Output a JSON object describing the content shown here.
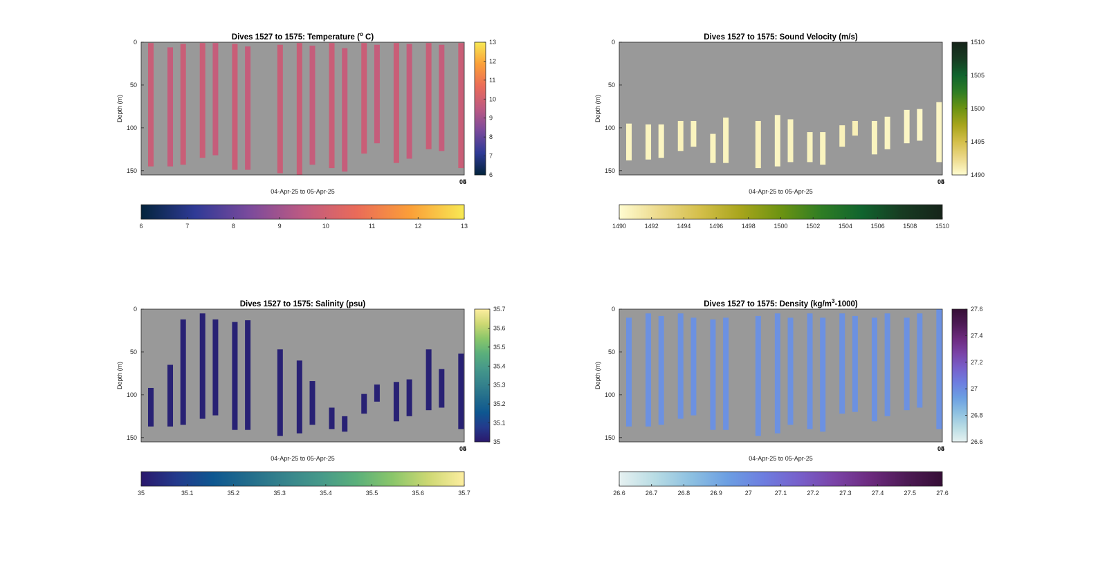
{
  "figure": {
    "background": "#ffffff",
    "axes_background": "#999999"
  },
  "chart_data": [
    {
      "type": "heatmap",
      "title_main": "Dives 1527 to 1575: Temperature (",
      "title_sup": "o",
      "title_tail": " C)",
      "xlabel": "04-Apr-25 to 05-Apr-25",
      "ylabel": "Depth (m)",
      "xtick_labels": [
        "04",
        "05"
      ],
      "ylim": [
        0,
        155
      ],
      "yticks": [
        0,
        50,
        100,
        150
      ],
      "colormap": "thermal",
      "colormap_stops": [
        "#03243c",
        "#2f3a96",
        "#7a4a9c",
        "#bd5a82",
        "#ea6b59",
        "#fb9f38",
        "#f7e954"
      ],
      "clim": [
        6,
        13
      ],
      "vcolorbar_ticks": [
        6,
        7,
        8,
        9,
        10,
        11,
        12,
        13
      ],
      "hcolorbar_ticks": [
        6,
        7,
        8,
        9,
        10,
        11,
        12,
        13
      ],
      "profiles": [
        {
          "x": 0.03,
          "top": 1,
          "bottom": 145,
          "value": 9.8
        },
        {
          "x": 0.09,
          "top": 6,
          "bottom": 145,
          "value": 9.7
        },
        {
          "x": 0.13,
          "top": 2,
          "bottom": 143,
          "value": 9.8
        },
        {
          "x": 0.19,
          "top": 1,
          "bottom": 135,
          "value": 9.8
        },
        {
          "x": 0.23,
          "top": 1,
          "bottom": 132,
          "value": 9.7
        },
        {
          "x": 0.29,
          "top": 2,
          "bottom": 149,
          "value": 9.8
        },
        {
          "x": 0.33,
          "top": 5,
          "bottom": 149,
          "value": 9.7
        },
        {
          "x": 0.43,
          "top": 3,
          "bottom": 153,
          "value": 9.8
        },
        {
          "x": 0.49,
          "top": 1,
          "bottom": 155,
          "value": 9.8
        },
        {
          "x": 0.53,
          "top": 4,
          "bottom": 143,
          "value": 9.7
        },
        {
          "x": 0.59,
          "top": 1,
          "bottom": 147,
          "value": 9.8
        },
        {
          "x": 0.63,
          "top": 7,
          "bottom": 151,
          "value": 9.7
        },
        {
          "x": 0.69,
          "top": 1,
          "bottom": 130,
          "value": 9.8
        },
        {
          "x": 0.73,
          "top": 3,
          "bottom": 118,
          "value": 9.7
        },
        {
          "x": 0.79,
          "top": 1,
          "bottom": 141,
          "value": 9.8
        },
        {
          "x": 0.83,
          "top": 2,
          "bottom": 136,
          "value": 9.7
        },
        {
          "x": 0.89,
          "top": 1,
          "bottom": 125,
          "value": 9.8
        },
        {
          "x": 0.93,
          "top": 3,
          "bottom": 127,
          "value": 9.7
        },
        {
          "x": 0.99,
          "top": 1,
          "bottom": 147,
          "value": 9.8
        }
      ]
    },
    {
      "type": "heatmap",
      "title_main": "Dives 1527 to 1575: Sound Velocity (m/s)",
      "title_sup": "",
      "title_tail": "",
      "xlabel": "04-Apr-25 to 05-Apr-25",
      "ylabel": "Depth (m)",
      "xtick_labels": [
        "04",
        "05"
      ],
      "ylim": [
        0,
        155
      ],
      "yticks": [
        0,
        50,
        100,
        150
      ],
      "colormap": "speed",
      "colormap_stops": [
        "#fffcd0",
        "#ecd98a",
        "#d4bf4a",
        "#a8a51c",
        "#6c9312",
        "#2f7d24",
        "#10642e",
        "#173b22",
        "#16241a"
      ],
      "clim": [
        1490,
        1510
      ],
      "vcolorbar_ticks": [
        1490,
        1495,
        1500,
        1505,
        1510
      ],
      "hcolorbar_ticks": [
        1490,
        1492,
        1494,
        1496,
        1498,
        1500,
        1502,
        1504,
        1506,
        1508,
        1510
      ],
      "profiles": [
        {
          "x": 0.03,
          "top": 95,
          "bottom": 138,
          "value": 1490.5
        },
        {
          "x": 0.09,
          "top": 96,
          "bottom": 137,
          "value": 1490.6
        },
        {
          "x": 0.13,
          "top": 96,
          "bottom": 135,
          "value": 1490.5
        },
        {
          "x": 0.19,
          "top": 92,
          "bottom": 127,
          "value": 1490.7
        },
        {
          "x": 0.23,
          "top": 92,
          "bottom": 122,
          "value": 1490.6
        },
        {
          "x": 0.29,
          "top": 107,
          "bottom": 141,
          "value": 1490.6
        },
        {
          "x": 0.33,
          "top": 88,
          "bottom": 141,
          "value": 1490.6
        },
        {
          "x": 0.43,
          "top": 92,
          "bottom": 147,
          "value": 1490.7
        },
        {
          "x": 0.49,
          "top": 85,
          "bottom": 145,
          "value": 1490.5
        },
        {
          "x": 0.53,
          "top": 90,
          "bottom": 140,
          "value": 1490.6
        },
        {
          "x": 0.59,
          "top": 105,
          "bottom": 140,
          "value": 1490.6
        },
        {
          "x": 0.63,
          "top": 105,
          "bottom": 143,
          "value": 1490.6
        },
        {
          "x": 0.69,
          "top": 97,
          "bottom": 122,
          "value": 1490.8
        },
        {
          "x": 0.73,
          "top": 92,
          "bottom": 109,
          "value": 1490.9
        },
        {
          "x": 0.79,
          "top": 92,
          "bottom": 131,
          "value": 1490.6
        },
        {
          "x": 0.83,
          "top": 87,
          "bottom": 125,
          "value": 1490.5
        },
        {
          "x": 0.89,
          "top": 79,
          "bottom": 118,
          "value": 1490.4
        },
        {
          "x": 0.93,
          "top": 78,
          "bottom": 115,
          "value": 1490.3
        },
        {
          "x": 0.99,
          "top": 70,
          "bottom": 140,
          "value": 1490.4
        }
      ]
    },
    {
      "type": "heatmap",
      "title_main": "Dives 1527 to 1575: Salinity (psu)",
      "title_sup": "",
      "title_tail": "",
      "xlabel": "04-Apr-25 to 05-Apr-25",
      "ylabel": "Depth (m)",
      "xtick_labels": [
        "04",
        "05"
      ],
      "ylim": [
        0,
        155
      ],
      "yticks": [
        0,
        50,
        100,
        150
      ],
      "colormap": "haline",
      "colormap_stops": [
        "#2a186c",
        "#233a8c",
        "#0e5790",
        "#236d8c",
        "#36848c",
        "#46998a",
        "#5bb07b",
        "#8ac66a",
        "#cdd873",
        "#fdeea0"
      ],
      "clim": [
        35,
        35.7
      ],
      "vcolorbar_ticks": [
        35,
        35.1,
        35.2,
        35.3,
        35.4,
        35.5,
        35.6,
        35.7
      ],
      "hcolorbar_ticks": [
        35,
        35.1,
        35.2,
        35.3,
        35.4,
        35.5,
        35.6,
        35.7
      ],
      "profiles": [
        {
          "x": 0.03,
          "top": 92,
          "bottom": 137,
          "value": 35.02
        },
        {
          "x": 0.09,
          "top": 65,
          "bottom": 137,
          "value": 35.02
        },
        {
          "x": 0.13,
          "top": 12,
          "bottom": 135,
          "value": 35.02
        },
        {
          "x": 0.19,
          "top": 5,
          "bottom": 128,
          "value": 35.02
        },
        {
          "x": 0.23,
          "top": 12,
          "bottom": 124,
          "value": 35.02
        },
        {
          "x": 0.29,
          "top": 15,
          "bottom": 141,
          "value": 35.02
        },
        {
          "x": 0.33,
          "top": 13,
          "bottom": 141,
          "value": 35.02
        },
        {
          "x": 0.43,
          "top": 47,
          "bottom": 148,
          "value": 35.02
        },
        {
          "x": 0.49,
          "top": 60,
          "bottom": 145,
          "value": 35.02
        },
        {
          "x": 0.53,
          "top": 84,
          "bottom": 135,
          "value": 35.02
        },
        {
          "x": 0.59,
          "top": 115,
          "bottom": 140,
          "value": 35.02
        },
        {
          "x": 0.63,
          "top": 125,
          "bottom": 143,
          "value": 35.02
        },
        {
          "x": 0.69,
          "top": 99,
          "bottom": 122,
          "value": 35.02
        },
        {
          "x": 0.73,
          "top": 88,
          "bottom": 108,
          "value": 35.02
        },
        {
          "x": 0.79,
          "top": 85,
          "bottom": 131,
          "value": 35.02
        },
        {
          "x": 0.83,
          "top": 82,
          "bottom": 125,
          "value": 35.02
        },
        {
          "x": 0.89,
          "top": 47,
          "bottom": 118,
          "value": 35.02
        },
        {
          "x": 0.93,
          "top": 70,
          "bottom": 115,
          "value": 35.02
        },
        {
          "x": 0.99,
          "top": 52,
          "bottom": 140,
          "value": 35.02
        }
      ]
    },
    {
      "type": "heatmap",
      "title_main": "Dives 1527 to 1575: Density (kg/m",
      "title_sup": "3",
      "title_tail": "-1000)",
      "xlabel": "04-Apr-25 to 05-Apr-25",
      "ylabel": "Depth (m)",
      "xtick_labels": [
        "04",
        "05"
      ],
      "ylim": [
        0,
        155
      ],
      "yticks": [
        0,
        50,
        100,
        150
      ],
      "colormap": "dense",
      "colormap_stops": [
        "#e6f1f1",
        "#b8dce4",
        "#8dc0e1",
        "#6c9fe2",
        "#6d7ee0",
        "#7760cb",
        "#7a43a7",
        "#6c2a7e",
        "#4d1a55",
        "#360e36"
      ],
      "clim": [
        26.6,
        27.6
      ],
      "vcolorbar_ticks": [
        26.6,
        26.8,
        27,
        27.2,
        27.4,
        27.6
      ],
      "hcolorbar_ticks": [
        26.6,
        26.7,
        26.8,
        26.9,
        27,
        27.1,
        27.2,
        27.3,
        27.4,
        27.5,
        27.6
      ],
      "profiles": [
        {
          "x": 0.03,
          "top": 10,
          "bottom": 137,
          "value": 26.98
        },
        {
          "x": 0.09,
          "top": 5,
          "bottom": 137,
          "value": 26.98
        },
        {
          "x": 0.13,
          "top": 8,
          "bottom": 135,
          "value": 26.98
        },
        {
          "x": 0.19,
          "top": 5,
          "bottom": 128,
          "value": 26.98
        },
        {
          "x": 0.23,
          "top": 10,
          "bottom": 124,
          "value": 26.98
        },
        {
          "x": 0.29,
          "top": 12,
          "bottom": 141,
          "value": 26.98
        },
        {
          "x": 0.33,
          "top": 10,
          "bottom": 141,
          "value": 26.98
        },
        {
          "x": 0.43,
          "top": 8,
          "bottom": 148,
          "value": 26.98
        },
        {
          "x": 0.49,
          "top": 5,
          "bottom": 145,
          "value": 26.98
        },
        {
          "x": 0.53,
          "top": 10,
          "bottom": 135,
          "value": 26.98
        },
        {
          "x": 0.59,
          "top": 5,
          "bottom": 140,
          "value": 26.98
        },
        {
          "x": 0.63,
          "top": 10,
          "bottom": 143,
          "value": 26.98
        },
        {
          "x": 0.69,
          "top": 5,
          "bottom": 122,
          "value": 26.98
        },
        {
          "x": 0.73,
          "top": 8,
          "bottom": 120,
          "value": 26.98
        },
        {
          "x": 0.79,
          "top": 10,
          "bottom": 131,
          "value": 26.98
        },
        {
          "x": 0.83,
          "top": 5,
          "bottom": 125,
          "value": 26.98
        },
        {
          "x": 0.89,
          "top": 10,
          "bottom": 118,
          "value": 26.98
        },
        {
          "x": 0.93,
          "top": 5,
          "bottom": 115,
          "value": 26.98
        },
        {
          "x": 0.99,
          "top": 0,
          "bottom": 140,
          "value": 26.98
        }
      ]
    }
  ]
}
